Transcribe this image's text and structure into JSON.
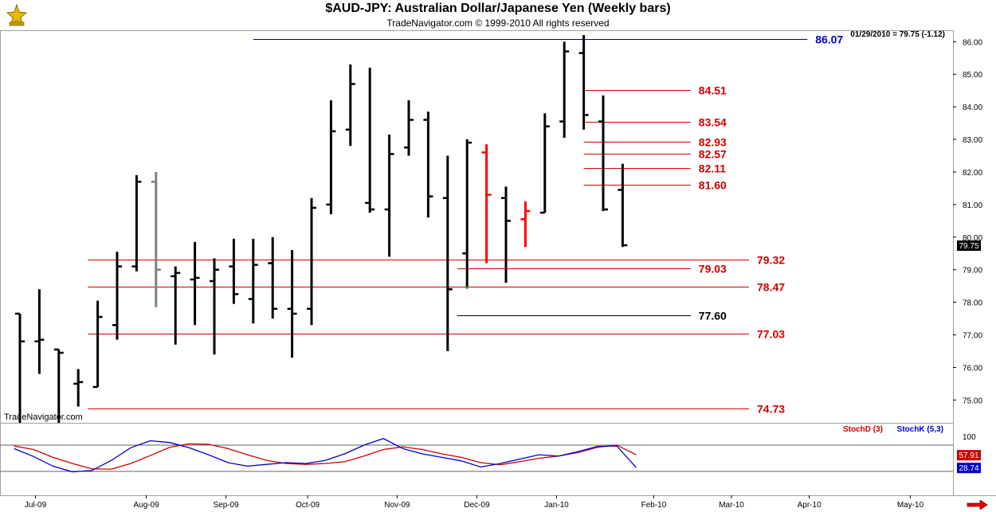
{
  "header": {
    "title": "$AUD-JPY:  Australian Dollar/Japanese Yen  (Weekly bars)",
    "subtitle": "TradeNavigator.com © 1999-2010 All rights reserved",
    "last_quote": "01/29/2010 = 79.75 (-1.12)",
    "watermark": "TradeNavigator.com",
    "logo_icon": "gold-trophy-icon",
    "scroll_icon": "right-arrow-icon"
  },
  "chart_data": [
    {
      "type": "ohlc",
      "title": "$AUD-JPY:  Australian Dollar/Japanese Yen  (Weekly bars)",
      "ylim": [
        74.3,
        86.35
      ],
      "y_ticks": [
        "75.00",
        "76.00",
        "77.00",
        "78.00",
        "79.00",
        "80.00",
        "81.00",
        "82.00",
        "83.00",
        "84.00",
        "85.00",
        "86.00"
      ],
      "x_labels": [
        "Jul-09",
        "Aug-09",
        "Sep-09",
        "Oct-09",
        "Nov-09",
        "Dec-09",
        "Jan-10",
        "Feb-10",
        "Mar-10",
        "Apr-10",
        "May-10"
      ],
      "x_label_weeks": [
        0.8,
        6.5,
        10.6,
        14.8,
        19.4,
        23.5,
        27.6,
        32.6,
        36.6,
        40.6,
        45.8
      ],
      "last_price_label": "79.75",
      "bars": [
        {
          "o": 77.65,
          "h": 77.65,
          "l": 74.3,
          "c": 76.8,
          "color": "#000000"
        },
        {
          "o": 76.8,
          "h": 78.4,
          "l": 75.8,
          "c": 76.85,
          "color": "#000000"
        },
        {
          "o": 76.55,
          "h": 76.55,
          "l": 74.3,
          "c": 76.45,
          "color": "#000000"
        },
        {
          "o": 75.5,
          "h": 75.95,
          "l": 74.8,
          "c": 75.55,
          "color": "#000000"
        },
        {
          "o": 75.4,
          "h": 78.05,
          "l": 75.4,
          "c": 77.55,
          "color": "#000000"
        },
        {
          "o": 77.3,
          "h": 79.55,
          "l": 76.85,
          "c": 79.1,
          "color": "#000000"
        },
        {
          "o": 79.1,
          "h": 81.9,
          "l": 78.95,
          "c": 81.7,
          "color": "#000000"
        },
        {
          "o": 81.7,
          "h": 82.0,
          "l": 77.85,
          "c": 79.0,
          "color": "#808080"
        },
        {
          "o": 78.8,
          "h": 79.1,
          "l": 76.7,
          "c": 78.9,
          "color": "#000000"
        },
        {
          "o": 78.7,
          "h": 79.85,
          "l": 77.3,
          "c": 78.75,
          "color": "#000000"
        },
        {
          "o": 78.65,
          "h": 79.35,
          "l": 76.4,
          "c": 79.0,
          "color": "#000000"
        },
        {
          "o": 79.1,
          "h": 79.95,
          "l": 77.95,
          "c": 78.25,
          "color": "#000000"
        },
        {
          "o": 78.1,
          "h": 79.95,
          "l": 77.35,
          "c": 79.15,
          "color": "#000000"
        },
        {
          "o": 79.2,
          "h": 80.0,
          "l": 77.5,
          "c": 77.8,
          "color": "#000000"
        },
        {
          "o": 77.8,
          "h": 79.6,
          "l": 76.3,
          "c": 77.65,
          "color": "#000000"
        },
        {
          "o": 77.8,
          "h": 81.2,
          "l": 77.3,
          "c": 80.9,
          "color": "#000000"
        },
        {
          "o": 81.0,
          "h": 84.2,
          "l": 80.7,
          "c": 83.25,
          "color": "#000000"
        },
        {
          "o": 83.3,
          "h": 85.3,
          "l": 82.8,
          "c": 84.7,
          "color": "#000000"
        },
        {
          "o": 81.05,
          "h": 85.2,
          "l": 80.75,
          "c": 80.85,
          "color": "#000000"
        },
        {
          "o": 80.85,
          "h": 83.15,
          "l": 79.4,
          "c": 82.55,
          "color": "#000000"
        },
        {
          "o": 82.75,
          "h": 84.2,
          "l": 82.5,
          "c": 83.6,
          "color": "#000000"
        },
        {
          "o": 83.6,
          "h": 83.85,
          "l": 80.6,
          "c": 81.25,
          "color": "#000000"
        },
        {
          "o": 81.2,
          "h": 82.5,
          "l": 76.5,
          "c": 78.4,
          "color": "#000000"
        },
        {
          "o": 79.5,
          "h": 83.0,
          "l": 78.45,
          "c": 82.9,
          "color": "#000000"
        },
        {
          "o": 82.6,
          "h": 82.85,
          "l": 79.2,
          "c": 81.3,
          "color": "#ff0000"
        },
        {
          "o": 81.2,
          "h": 81.55,
          "l": 78.6,
          "c": 80.5,
          "color": "#000000"
        },
        {
          "o": 80.55,
          "h": 81.1,
          "l": 79.7,
          "c": 80.8,
          "color": "#ff0000"
        },
        {
          "o": 80.75,
          "h": 83.8,
          "l": 80.75,
          "c": 83.4,
          "color": "#000000"
        },
        {
          "o": 83.55,
          "h": 86.0,
          "l": 83.05,
          "c": 85.7,
          "color": "#000000"
        },
        {
          "o": 85.65,
          "h": 86.2,
          "l": 83.3,
          "c": 83.75,
          "color": "#000000"
        },
        {
          "o": 83.55,
          "h": 84.35,
          "l": 80.8,
          "c": 80.85,
          "color": "#000000"
        },
        {
          "o": 81.45,
          "h": 82.25,
          "l": 79.7,
          "c": 79.75,
          "color": "#000000"
        }
      ],
      "green_tick": {
        "week": 23,
        "value": 78.45,
        "color": "#00aa00"
      },
      "levels": [
        {
          "value": 86.07,
          "label": "86.07",
          "color": "#0000cc",
          "line_color": "#000080",
          "start_week": 12.0,
          "end_week": 40.5
        },
        {
          "value": 84.51,
          "label": "84.51",
          "color": "#cc0000",
          "line_color": "#cc0000",
          "start_week": 29.0,
          "end_week": 34.5
        },
        {
          "value": 83.54,
          "label": "83.54",
          "color": "#cc0000",
          "line_color": "#cc0000",
          "start_week": 29.0,
          "end_week": 34.5
        },
        {
          "value": 82.93,
          "label": "82.93",
          "color": "#cc0000",
          "line_color": "#cc0000",
          "start_week": 29.0,
          "end_week": 34.5
        },
        {
          "value": 82.57,
          "label": "82.57",
          "color": "#cc0000",
          "line_color": "#cc0000",
          "start_week": 29.0,
          "end_week": 34.5
        },
        {
          "value": 82.11,
          "label": "82.11",
          "color": "#cc0000",
          "line_color": "#cc0000",
          "start_week": 29.0,
          "end_week": 34.5
        },
        {
          "value": 81.6,
          "label": "81.60",
          "color": "#cc0000",
          "line_color": "#cc0000",
          "start_week": 29.0,
          "end_week": 34.5
        },
        {
          "value": 79.32,
          "label": "79.32",
          "color": "#cc0000",
          "line_color": "#cc0000",
          "start_week": 3.5,
          "end_week": 37.5
        },
        {
          "value": 79.03,
          "label": "79.03",
          "color": "#cc0000",
          "line_color": "#cc0000",
          "start_week": 22.5,
          "end_week": 34.5
        },
        {
          "value": 78.47,
          "label": "78.47",
          "color": "#cc0000",
          "line_color": "#cc0000",
          "start_week": 3.5,
          "end_week": 37.5
        },
        {
          "value": 77.6,
          "label": "77.60",
          "color": "#000000",
          "line_color": "#000000",
          "start_week": 22.5,
          "end_week": 34.5
        },
        {
          "value": 77.03,
          "label": "77.03",
          "color": "#cc0000",
          "line_color": "#cc0000",
          "start_week": 3.5,
          "end_week": 37.5
        },
        {
          "value": 74.73,
          "label": "74.73",
          "color": "#cc0000",
          "line_color": "#cc0000",
          "start_week": 3.5,
          "end_week": 37.5
        }
      ]
    },
    {
      "type": "line",
      "legend": [
        {
          "name": "StochD (3)",
          "color": "#cc0000"
        },
        {
          "name": "StochK (5,3)",
          "color": "#0000cc"
        }
      ],
      "ylim": [
        0,
        100
      ],
      "y_ticks": [
        "100"
      ],
      "reference_lines": [
        80,
        20
      ],
      "current_labels": [
        {
          "label": "57.91",
          "value": 57.91,
          "color": "#cc0000"
        },
        {
          "label": "28.74",
          "value": 28.74,
          "color": "#0000cc"
        }
      ],
      "series": [
        {
          "name": "StochD (3)",
          "color": "#cc0000",
          "values": [
            78,
            70,
            52,
            38,
            26,
            25,
            38,
            56,
            75,
            83,
            82,
            72,
            58,
            45,
            38,
            36,
            38,
            42,
            55,
            70,
            76,
            70,
            60,
            52,
            40,
            35,
            42,
            50,
            55,
            63,
            75,
            80,
            57.91
          ]
        },
        {
          "name": "StochK (5,3)",
          "color": "#0000cc",
          "values": [
            72,
            54,
            32,
            19,
            22,
            45,
            74,
            90,
            86,
            74,
            58,
            40,
            32,
            36,
            40,
            38,
            45,
            60,
            80,
            95,
            72,
            60,
            52,
            44,
            30,
            38,
            48,
            58,
            55,
            65,
            77,
            78,
            28.74
          ]
        }
      ],
      "stoch_start_week": -0.3
    }
  ]
}
